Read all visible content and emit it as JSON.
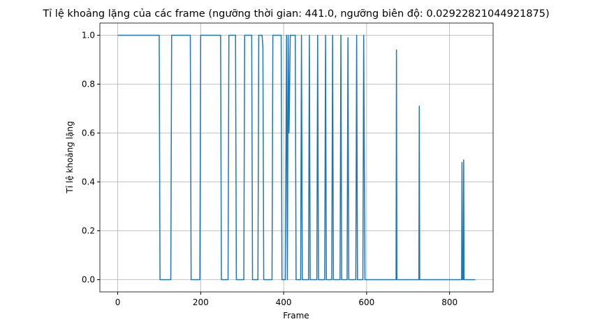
{
  "chart_data": {
    "type": "line",
    "title": "Tỉ lệ khoảng lặng của các frame (ngưỡng thời gian: 441.0, ngưỡng biên độ: 0.02922821044921875)",
    "x_label": "Frame",
    "y_label": "Tỉ lệ khoảng lặng",
    "x": [
      0,
      100,
      102,
      128,
      130,
      175,
      177,
      198,
      200,
      248,
      250,
      266,
      268,
      284,
      286,
      304,
      306,
      323,
      325,
      338,
      340,
      348,
      350,
      352,
      372,
      374,
      394,
      396,
      404,
      407,
      409,
      411,
      413,
      416,
      428,
      430,
      441,
      443,
      445,
      460,
      462,
      464,
      480,
      482,
      484,
      499,
      501,
      503,
      516,
      518,
      520,
      536,
      538,
      540,
      553,
      555,
      557,
      574,
      576,
      578,
      591,
      593,
      596,
      671,
      672,
      673,
      726,
      727,
      728,
      829,
      830,
      831,
      833,
      834,
      835,
      862
    ],
    "series": [
      {
        "color": "#1f77b4",
        "values": [
          1,
          1,
          0,
          0,
          1,
          1,
          0,
          0,
          1,
          1,
          0,
          0,
          1,
          1,
          0,
          0,
          1,
          1,
          0,
          0,
          1,
          1,
          0.95,
          0,
          0,
          1,
          1,
          0,
          0,
          1,
          0,
          1,
          0.6,
          1,
          1,
          0,
          0,
          1,
          0,
          0,
          1,
          0,
          0,
          1,
          0,
          0,
          1,
          0,
          0,
          1,
          0,
          0,
          1,
          0,
          0,
          0.99,
          0,
          0,
          1,
          0,
          0,
          1,
          0,
          0,
          0.94,
          0,
          0,
          0.71,
          0,
          0,
          0.48,
          0,
          0,
          0.49,
          0,
          0
        ]
      }
    ],
    "xlim": [
      -43,
      905
    ],
    "ylim": [
      -0.05,
      1.05
    ],
    "xticks": [
      0,
      200,
      400,
      600,
      800
    ],
    "yticks": [
      {
        "value": 0,
        "label": "0.0"
      },
      {
        "value": 0.2,
        "label": "0.2"
      },
      {
        "value": 0.4,
        "label": "0.4"
      },
      {
        "value": 0.6,
        "label": "0.6"
      },
      {
        "value": 0.8,
        "label": "0.8"
      },
      {
        "value": 1,
        "label": "1.0"
      }
    ],
    "grid": true
  }
}
